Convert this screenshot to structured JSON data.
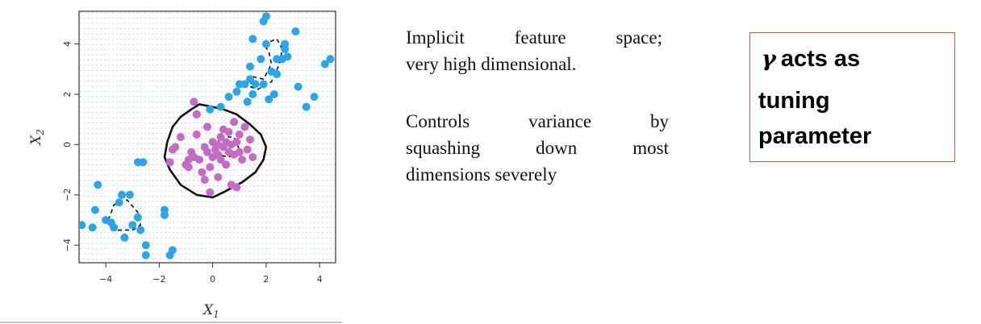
{
  "chart_data": {
    "type": "scatter",
    "xlabel": "X1",
    "ylabel": "X2",
    "xlim": [
      -5,
      4.6
    ],
    "ylim": [
      -4.7,
      5.3
    ],
    "xticks": [
      -4,
      -2,
      0,
      2,
      4
    ],
    "yticks": [
      -4,
      -2,
      0,
      2,
      4
    ],
    "xtick_labels": [
      "−4",
      "−2",
      "0",
      "2",
      "4"
    ],
    "ytick_labels": [
      "−4",
      "−2",
      "0",
      "2",
      "4"
    ],
    "background": "dotted grid",
    "series": [
      {
        "color": "#2aa6e8",
        "points": [
          [
            -4.9,
            -3.2
          ],
          [
            -4.5,
            -3.3
          ],
          [
            -4.4,
            -2.6
          ],
          [
            -4.3,
            -1.6
          ],
          [
            -4.0,
            -3.0
          ],
          [
            -3.8,
            -3.1
          ],
          [
            -3.7,
            -3.3
          ],
          [
            -3.5,
            -2.3
          ],
          [
            -3.4,
            -2.0
          ],
          [
            -3.3,
            -3.7
          ],
          [
            -3.1,
            -2.0
          ],
          [
            -3.0,
            -3.2
          ],
          [
            -2.8,
            -2.9
          ],
          [
            -2.7,
            -3.4
          ],
          [
            -2.5,
            -4.0
          ],
          [
            -2.5,
            -4.4
          ],
          [
            -2.8,
            -0.7
          ],
          [
            -2.6,
            -0.7
          ],
          [
            -1.8,
            -2.8
          ],
          [
            -1.8,
            -2.6
          ],
          [
            -1.6,
            -4.4
          ],
          [
            -1.5,
            -4.2
          ],
          [
            0.9,
            2.1
          ],
          [
            1.0,
            2.4
          ],
          [
            1.2,
            2.4
          ],
          [
            1.3,
            1.7
          ],
          [
            1.4,
            3.1
          ],
          [
            1.4,
            2.6
          ],
          [
            1.5,
            4.2
          ],
          [
            1.5,
            2.0
          ],
          [
            1.6,
            2.4
          ],
          [
            1.8,
            3.4
          ],
          [
            1.9,
            4.9
          ],
          [
            1.9,
            2.4
          ],
          [
            2.0,
            5.1
          ],
          [
            2.0,
            4.0
          ],
          [
            2.2,
            2.9
          ],
          [
            2.3,
            2.0
          ],
          [
            2.4,
            3.4
          ],
          [
            2.4,
            2.8
          ],
          [
            2.6,
            3.4
          ],
          [
            2.7,
            4.0
          ],
          [
            2.7,
            3.8
          ],
          [
            2.8,
            3.5
          ],
          [
            3.1,
            4.5
          ],
          [
            3.2,
            2.3
          ],
          [
            3.5,
            1.5
          ],
          [
            3.8,
            1.9
          ],
          [
            4.2,
            3.2
          ],
          [
            4.4,
            3.4
          ],
          [
            0.6,
            1.9
          ],
          [
            0.3,
            1.5
          ],
          [
            -0.1,
            1.4
          ],
          [
            -0.6,
            1.2
          ],
          [
            2.1,
            1.8
          ]
        ]
      },
      {
        "color": "#c46bc4",
        "points": [
          [
            -1.5,
            -0.2
          ],
          [
            -1.4,
            -0.1
          ],
          [
            -1.2,
            0.3
          ],
          [
            -1.0,
            -0.8
          ],
          [
            -0.9,
            -0.9
          ],
          [
            -0.8,
            -0.3
          ],
          [
            -0.7,
            -0.5
          ],
          [
            -0.6,
            0.4
          ],
          [
            -0.6,
            1.2
          ],
          [
            -0.5,
            -0.6
          ],
          [
            -0.4,
            -1.1
          ],
          [
            -0.3,
            -0.1
          ],
          [
            -0.3,
            -1.4
          ],
          [
            -0.2,
            0.7
          ],
          [
            -0.2,
            -0.3
          ],
          [
            -0.1,
            -1.9
          ],
          [
            -0.1,
            -0.9
          ],
          [
            0.0,
            0.1
          ],
          [
            0.0,
            -0.5
          ],
          [
            0.1,
            -0.2
          ],
          [
            0.2,
            -0.4
          ],
          [
            0.2,
            0.0
          ],
          [
            0.3,
            0.3
          ],
          [
            0.3,
            -0.6
          ],
          [
            0.4,
            0.6
          ],
          [
            0.4,
            -0.1
          ],
          [
            0.5,
            -0.8
          ],
          [
            0.5,
            0.1
          ],
          [
            0.6,
            0.5
          ],
          [
            0.6,
            -0.3
          ],
          [
            0.7,
            0.0
          ],
          [
            0.7,
            -1.6
          ],
          [
            0.8,
            0.9
          ],
          [
            0.8,
            -0.4
          ],
          [
            0.9,
            0.1
          ],
          [
            0.9,
            -1.7
          ],
          [
            1.0,
            -0.3
          ],
          [
            1.0,
            0.4
          ],
          [
            1.1,
            -0.6
          ],
          [
            1.2,
            0.7
          ],
          [
            1.3,
            -0.2
          ],
          [
            1.4,
            0.2
          ],
          [
            1.5,
            -0.5
          ],
          [
            -0.7,
            1.7
          ],
          [
            -0.9,
            -0.6
          ],
          [
            0.2,
            -1.3
          ],
          [
            -1.6,
            -0.7
          ]
        ]
      }
    ],
    "curves": [
      {
        "style": "solid",
        "points": [
          [
            -1.7,
            0.1
          ],
          [
            -1.5,
            0.7
          ],
          [
            -1.2,
            1.1
          ],
          [
            -0.8,
            1.4
          ],
          [
            -0.5,
            1.6
          ],
          [
            0.0,
            1.5
          ],
          [
            0.4,
            1.4
          ],
          [
            0.9,
            1.2
          ],
          [
            1.4,
            0.8
          ],
          [
            1.8,
            0.4
          ],
          [
            2.0,
            -0.1
          ],
          [
            1.9,
            -0.6
          ],
          [
            1.6,
            -1.1
          ],
          [
            1.1,
            -1.5
          ],
          [
            0.4,
            -1.9
          ],
          [
            0.0,
            -2.1
          ],
          [
            -0.6,
            -2.0
          ],
          [
            -1.2,
            -1.6
          ],
          [
            -1.6,
            -1.0
          ],
          [
            -1.8,
            -0.5
          ],
          [
            -1.7,
            0.1
          ]
        ]
      },
      {
        "style": "dashed",
        "points": [
          [
            -3.9,
            -3.0
          ],
          [
            -3.7,
            -2.4
          ],
          [
            -3.2,
            -2.2
          ],
          [
            -2.8,
            -2.7
          ],
          [
            -2.7,
            -3.2
          ],
          [
            -3.0,
            -3.4
          ],
          [
            -3.6,
            -3.4
          ],
          [
            -3.9,
            -3.0
          ]
        ]
      },
      {
        "style": "dashed",
        "points": [
          [
            1.9,
            4.0
          ],
          [
            2.4,
            4.2
          ],
          [
            2.6,
            3.8
          ],
          [
            2.5,
            3.2
          ],
          [
            2.2,
            2.5
          ],
          [
            1.7,
            2.2
          ],
          [
            1.4,
            2.3
          ],
          [
            1.5,
            2.7
          ],
          [
            1.9,
            2.6
          ],
          [
            2.2,
            3.2
          ],
          [
            2.1,
            3.7
          ],
          [
            1.9,
            4.0
          ]
        ]
      },
      {
        "style": "dashed",
        "points": [
          [
            0.0,
            -0.2
          ],
          [
            0.3,
            0.3
          ],
          [
            0.8,
            0.3
          ],
          [
            1.0,
            -0.2
          ],
          [
            0.6,
            -0.5
          ],
          [
            0.2,
            -0.4
          ],
          [
            0.0,
            -0.2
          ]
        ]
      }
    ]
  },
  "text": {
    "para1": [
      "Implicit feature space;",
      "very high dimensional."
    ],
    "para2": [
      "Controls variance by",
      "squashing down most",
      "dimensions severely"
    ]
  },
  "callout": {
    "symbol": "γ",
    "line1": "acts as",
    "line2": "tuning",
    "line3": "parameter",
    "border_color": "#d9534f"
  }
}
